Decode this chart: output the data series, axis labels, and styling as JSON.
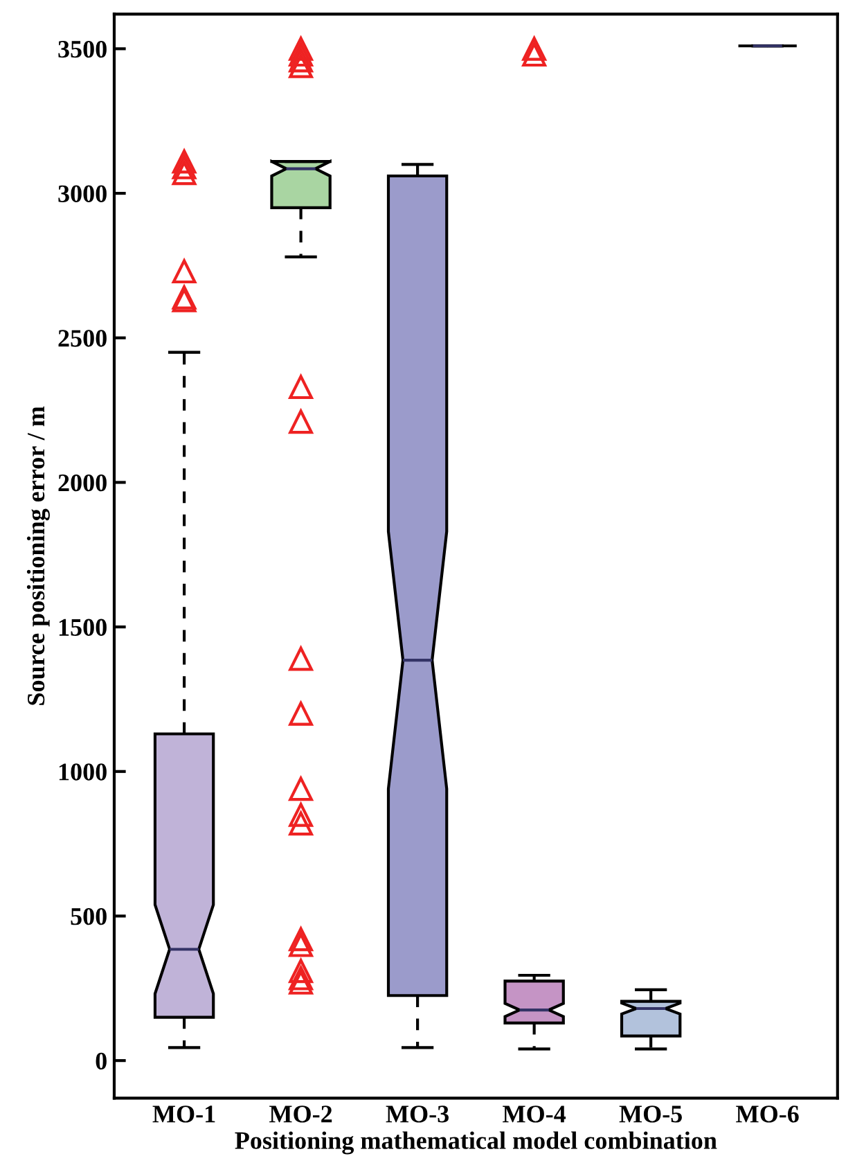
{
  "chart_data": {
    "type": "box",
    "xlabel": "Positioning mathematical model combination",
    "ylabel": "Source positioning error / m",
    "categories": [
      "MO-1",
      "MO-2",
      "MO-3",
      "MO-4",
      "MO-5",
      "MO-6"
    ],
    "colors": [
      "#c0b3d8",
      "#a9d5a2",
      "#9b9bcb",
      "#c594c5",
      "#b2c2dc",
      "#000000"
    ],
    "boxes": [
      {
        "low": 45,
        "q1": 150,
        "median": 385,
        "q3": 1130,
        "high": 2450,
        "outliers": [
          2630,
          2640,
          2730,
          3070,
          3090,
          3110
        ]
      },
      {
        "low": 2780,
        "q1": 2950,
        "median": 3085,
        "q3": 3110,
        "high": 3110,
        "outliers": [
          270,
          285,
          310,
          400,
          420,
          820,
          850,
          940,
          1200,
          1390,
          2210,
          2330,
          3440,
          3460,
          3480,
          3500
        ]
      },
      {
        "low": 45,
        "q1": 225,
        "median": 1385,
        "q3": 3060,
        "high": 3100
      },
      {
        "low": 40,
        "q1": 130,
        "median": 175,
        "q3": 275,
        "high": 295,
        "outliers": [
          3480,
          3500
        ]
      },
      {
        "low": 40,
        "q1": 85,
        "median": 180,
        "q3": 205,
        "high": 245
      },
      {
        "low": 3510,
        "q1": 3510,
        "median": 3510,
        "q3": 3510,
        "high": 3510
      }
    ],
    "marker": "triangle",
    "line_style": "dashed",
    "ylim": [
      -130,
      3620
    ],
    "yticks": [
      0,
      500,
      1000,
      1500,
      2000,
      2500,
      3000,
      3500
    ],
    "grid": false
  }
}
